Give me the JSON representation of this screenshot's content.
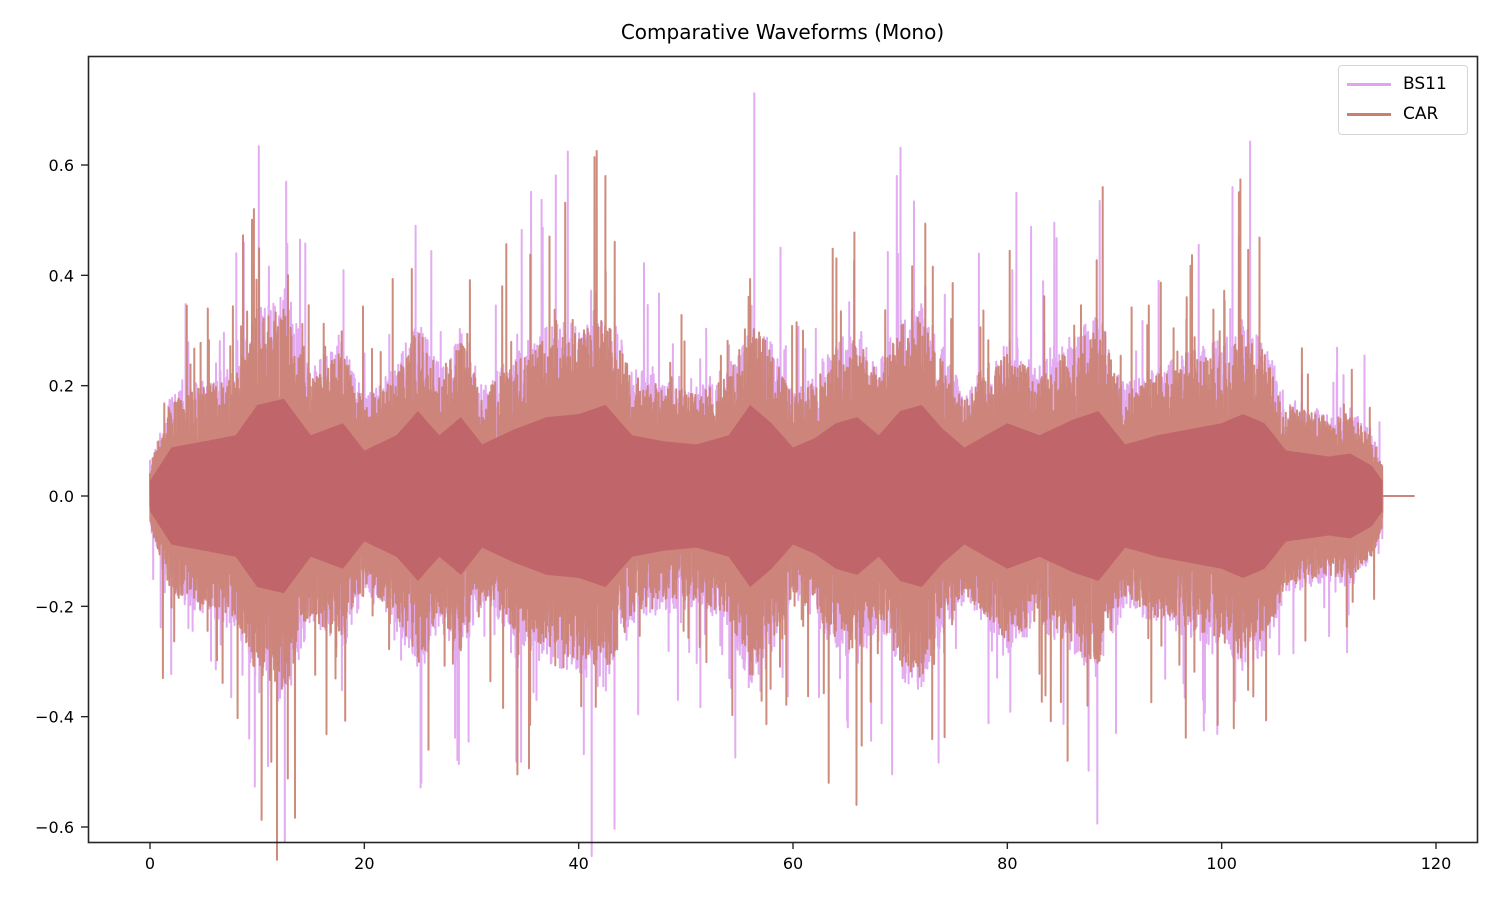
{
  "chart_data": {
    "type": "line",
    "title": "Comparative Waveforms (Mono)",
    "xlabel": "",
    "ylabel": "",
    "xlim": [
      -5.8,
      123.8
    ],
    "ylim": [
      -0.625,
      0.79
    ],
    "xticks": [
      0,
      20,
      40,
      60,
      80,
      100,
      120
    ],
    "xtick_labels": [
      "0",
      "20",
      "40",
      "60",
      "80",
      "100",
      "120"
    ],
    "yticks": [
      -0.6,
      -0.4,
      -0.2,
      0.0,
      0.2,
      0.4,
      0.6
    ],
    "ytick_labels": [
      "−0.6",
      "−0.4",
      "−0.2",
      "0.0",
      "0.2",
      "0.4",
      "0.6"
    ],
    "grid": false,
    "legend_position": "upper right",
    "signal_end_x": 115,
    "flat_tail_end_x": 118,
    "series": [
      {
        "name": "BS11",
        "color": "#e0a3ee",
        "alpha": 0.9,
        "approx_range": [
          -0.52,
          0.73
        ],
        "notable_peaks": [
          {
            "x": 56.4,
            "y": 0.73
          },
          {
            "x": 25.3,
            "y": 0.63
          },
          {
            "x": 12.7,
            "y": 0.57
          },
          {
            "x": 69.7,
            "y": 0.58
          },
          {
            "x": 101.0,
            "y": 0.56
          },
          {
            "x": 11.0,
            "y": -0.49
          },
          {
            "x": 25.3,
            "y": -0.52
          }
        ]
      },
      {
        "name": "CAR",
        "color": "#c9806e",
        "alpha": 0.9,
        "approx_range": [
          -0.56,
          0.58
        ],
        "notable_peaks": [
          {
            "x": 42.5,
            "y": 0.58
          },
          {
            "x": 88.9,
            "y": 0.56
          },
          {
            "x": 9.7,
            "y": 0.52
          },
          {
            "x": 65.9,
            "y": -0.56
          },
          {
            "x": 63.3,
            "y": -0.52
          },
          {
            "x": 85.6,
            "y": -0.48
          },
          {
            "x": 1.2,
            "y": -0.33
          }
        ]
      }
    ],
    "overlap_color": "#c0666b",
    "envelope_profile": {
      "x": [
        0,
        2,
        5,
        8,
        10,
        12.5,
        15,
        18,
        20,
        23,
        25,
        27,
        29,
        31,
        34,
        37,
        40,
        42.5,
        45,
        48,
        51,
        54,
        56,
        58,
        60,
        62,
        64,
        66,
        68,
        70,
        72,
        74,
        76,
        78,
        80,
        83,
        86,
        88.5,
        91,
        94,
        97,
        100,
        102,
        104,
        106,
        108,
        110,
        112,
        114,
        115
      ],
      "amplitude": [
        0.05,
        0.16,
        0.18,
        0.2,
        0.3,
        0.32,
        0.2,
        0.24,
        0.15,
        0.2,
        0.28,
        0.2,
        0.26,
        0.17,
        0.22,
        0.26,
        0.27,
        0.3,
        0.2,
        0.18,
        0.17,
        0.2,
        0.3,
        0.24,
        0.16,
        0.19,
        0.24,
        0.26,
        0.2,
        0.28,
        0.3,
        0.22,
        0.16,
        0.2,
        0.24,
        0.2,
        0.25,
        0.28,
        0.17,
        0.2,
        0.22,
        0.24,
        0.27,
        0.24,
        0.15,
        0.14,
        0.13,
        0.14,
        0.1,
        0.05
      ]
    }
  }
}
